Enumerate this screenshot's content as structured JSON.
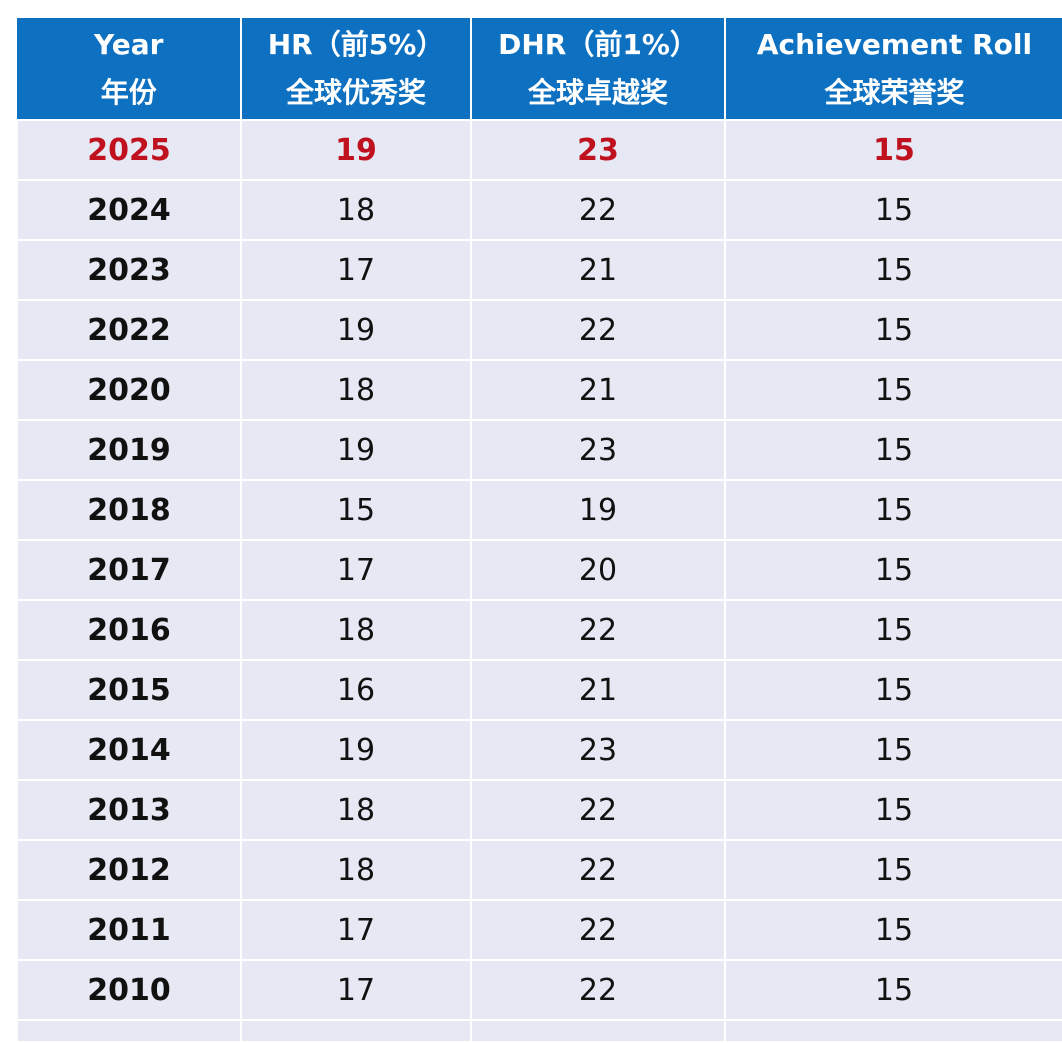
{
  "table": {
    "headers": [
      {
        "line1": "Year",
        "line2": "年份"
      },
      {
        "line1": "HR（前5%）",
        "line2": "全球优秀奖"
      },
      {
        "line1": "DHR（前1%）",
        "line2": "全球卓越奖"
      },
      {
        "line1": "Achievement Roll",
        "line2": "全球荣誉奖"
      }
    ],
    "rows": [
      [
        "2025",
        "19",
        "23",
        "15"
      ],
      [
        "2024",
        "18",
        "22",
        "15"
      ],
      [
        "2023",
        "17",
        "21",
        "15"
      ],
      [
        "2022",
        "19",
        "22",
        "15"
      ],
      [
        "2020",
        "18",
        "21",
        "15"
      ],
      [
        "2019",
        "19",
        "23",
        "15"
      ],
      [
        "2018",
        "15",
        "19",
        "15"
      ],
      [
        "2017",
        "17",
        "20",
        "15"
      ],
      [
        "2016",
        "18",
        "22",
        "15"
      ],
      [
        "2015",
        "16",
        "21",
        "15"
      ],
      [
        "2014",
        "19",
        "23",
        "15"
      ],
      [
        "2013",
        "18",
        "22",
        "15"
      ],
      [
        "2012",
        "18",
        "22",
        "15"
      ],
      [
        "2011",
        "17",
        "22",
        "15"
      ],
      [
        "2010",
        "17",
        "22",
        "15"
      ]
    ]
  },
  "colors": {
    "header_bg": "#0d70c0",
    "row_bg": "#e6e9f4",
    "highlight_text": "#c0111f"
  }
}
